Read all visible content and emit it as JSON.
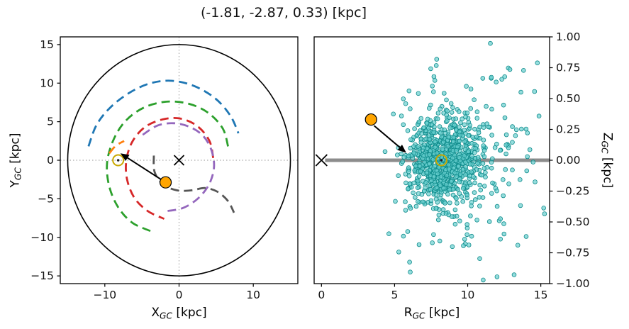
{
  "title": "(-1.81, -2.87, 0.33) [kpc]",
  "chart_data": [
    {
      "type": "scatter",
      "panel": "galactic-plane-top-view",
      "xlabel": {
        "main": "X",
        "sub": "GC",
        "unit": " [kpc]"
      },
      "ylabel": {
        "main": "Y",
        "sub": "GC",
        "unit": " [kpc]"
      },
      "xlim": [
        -16,
        16
      ],
      "ylim": [
        -16,
        16
      ],
      "xtick_vals": [
        -10,
        0,
        10
      ],
      "xtick_labels": [
        "−10",
        "0",
        "10"
      ],
      "ytick_vals": [
        15,
        10,
        5,
        0,
        -5,
        -10,
        -15
      ],
      "ytick_labels": [
        "15",
        "10",
        "5",
        "0",
        "−5",
        "−10",
        "−15"
      ],
      "crosshair": {
        "x": 0,
        "y": 0,
        "color": "#aaaaaa"
      },
      "disk_circle": {
        "cx": 0,
        "cy": 0,
        "r": 15,
        "color": "#000000"
      },
      "galactic_center": {
        "x": 0,
        "y": 0,
        "marker": "x"
      },
      "sun": {
        "x": -8.2,
        "y": 0,
        "color": "#c9a800"
      },
      "object": {
        "x": -1.81,
        "y": -2.87,
        "color": "#ffa500"
      },
      "arrow": {
        "x1": -1.81,
        "y1": -2.87,
        "x2": -7.9,
        "y2": 0.9
      },
      "spiral_arms": [
        {
          "id": "arm-blue",
          "color": "#1f77b4",
          "points": [
            [
              -12.2,
              1.8
            ],
            [
              -11.1,
              4.6
            ],
            [
              -9.2,
              6.9
            ],
            [
              -6.6,
              8.8
            ],
            [
              -3.8,
              10.0
            ],
            [
              -0.9,
              10.3
            ],
            [
              2.1,
              9.6
            ],
            [
              4.9,
              8.0
            ],
            [
              6.9,
              5.8
            ],
            [
              8.0,
              3.5
            ]
          ]
        },
        {
          "id": "arm-green",
          "color": "#2ca02c",
          "points": [
            [
              6.6,
              1.8
            ],
            [
              5.9,
              4.1
            ],
            [
              4.0,
              6.1
            ],
            [
              1.4,
              7.3
            ],
            [
              -1.7,
              7.6
            ],
            [
              -4.8,
              6.8
            ],
            [
              -7.3,
              5.0
            ],
            [
              -8.9,
              2.5
            ],
            [
              -9.7,
              -0.4
            ],
            [
              -9.4,
              -3.4
            ],
            [
              -8.2,
              -6.1
            ],
            [
              -6.3,
              -8.1
            ],
            [
              -3.8,
              -9.2
            ]
          ]
        },
        {
          "id": "arm-red",
          "color": "#d62728",
          "points": [
            [
              4.6,
              0.3
            ],
            [
              4.1,
              2.5
            ],
            [
              2.5,
              4.4
            ],
            [
              0.2,
              5.4
            ],
            [
              -2.2,
              5.3
            ],
            [
              -4.6,
              4.3
            ],
            [
              -6.3,
              2.4
            ],
            [
              -7.1,
              0.0
            ],
            [
              -7.0,
              -2.5
            ],
            [
              -6.0,
              -4.9
            ],
            [
              -4.2,
              -6.6
            ],
            [
              -2.0,
              -7.6
            ]
          ]
        },
        {
          "id": "arm-purple",
          "color": "#9467bd",
          "points": [
            [
              -4.9,
              3.3
            ],
            [
              -2.9,
              4.5
            ],
            [
              -0.7,
              4.8
            ],
            [
              1.5,
              4.3
            ],
            [
              3.3,
              3.1
            ],
            [
              4.4,
              1.2
            ],
            [
              4.7,
              -1.0
            ],
            [
              4.0,
              -3.2
            ],
            [
              2.5,
              -5.0
            ],
            [
              0.5,
              -6.2
            ],
            [
              -1.7,
              -6.6
            ]
          ]
        },
        {
          "id": "arm-orange",
          "color": "#ff7f0e",
          "points": [
            [
              -9.4,
              0.9
            ],
            [
              -8.5,
              1.9
            ],
            [
              -7.4,
              2.5
            ]
          ]
        },
        {
          "id": "arm-gray",
          "color": "#555555",
          "points": [
            [
              -3.4,
              0.6
            ],
            [
              -3.3,
              -1.5
            ],
            [
              -2.2,
              -3.1
            ],
            [
              -0.3,
              -3.9
            ],
            [
              1.7,
              -3.9
            ],
            [
              3.5,
              -3.6
            ],
            [
              5.2,
              -4.1
            ],
            [
              6.6,
              -5.3
            ],
            [
              7.4,
              -6.8
            ]
          ]
        }
      ]
    },
    {
      "type": "scatter",
      "panel": "r-z-side-view",
      "xlabel": {
        "main": "R",
        "sub": "GC",
        "unit": " [kpc]"
      },
      "ylabel": {
        "main": "Z",
        "sub": "GC",
        "unit": " [kpc]"
      },
      "xlim": [
        -0.5,
        15.6
      ],
      "ylim": [
        -1.0,
        1.0
      ],
      "xtick_vals": [
        0,
        5,
        10,
        15
      ],
      "xtick_labels": [
        "0",
        "5",
        "10",
        "15"
      ],
      "ytick_vals": [
        1.0,
        0.75,
        0.5,
        0.25,
        0.0,
        -0.25,
        -0.5,
        -0.75,
        -1.0
      ],
      "ytick_labels": [
        "1.00",
        "0.75",
        "0.50",
        "0.25",
        "0.00",
        "−0.25",
        "−0.50",
        "−0.75",
        "−1.00"
      ],
      "plane_line": {
        "z": 0,
        "r_start": 0.25,
        "r_end": 15.6,
        "color": "#8c8c8c",
        "width": 5
      },
      "galactic_center": {
        "x": 0,
        "y": 0,
        "marker": "x"
      },
      "sun": {
        "x": 8.2,
        "y": 0,
        "color": "#c9a800"
      },
      "object": {
        "x": 3.39,
        "y": 0.33,
        "color": "#ffa500"
      },
      "arrow": {
        "x1": 3.6,
        "y1": 0.28,
        "x2": 5.8,
        "y2": 0.06
      },
      "stars_cloud": {
        "n": 1000,
        "seed": 7,
        "marker_fill": "#66cfcf",
        "marker_edge": "#0d8a8a",
        "opacity": 0.7,
        "components": [
          {
            "weight": 0.78,
            "r_mean": 8.4,
            "r_sigma": 1.25,
            "z_mean": 0.0,
            "z_sigma": 0.17
          },
          {
            "weight": 0.22,
            "r_mean": 9.6,
            "r_sigma": 2.6,
            "z_mean": 0.02,
            "z_sigma": 0.46
          }
        ],
        "r_min": 4.3,
        "r_max": 15.55,
        "z_min": -0.99,
        "z_max": 1.0
      }
    }
  ]
}
